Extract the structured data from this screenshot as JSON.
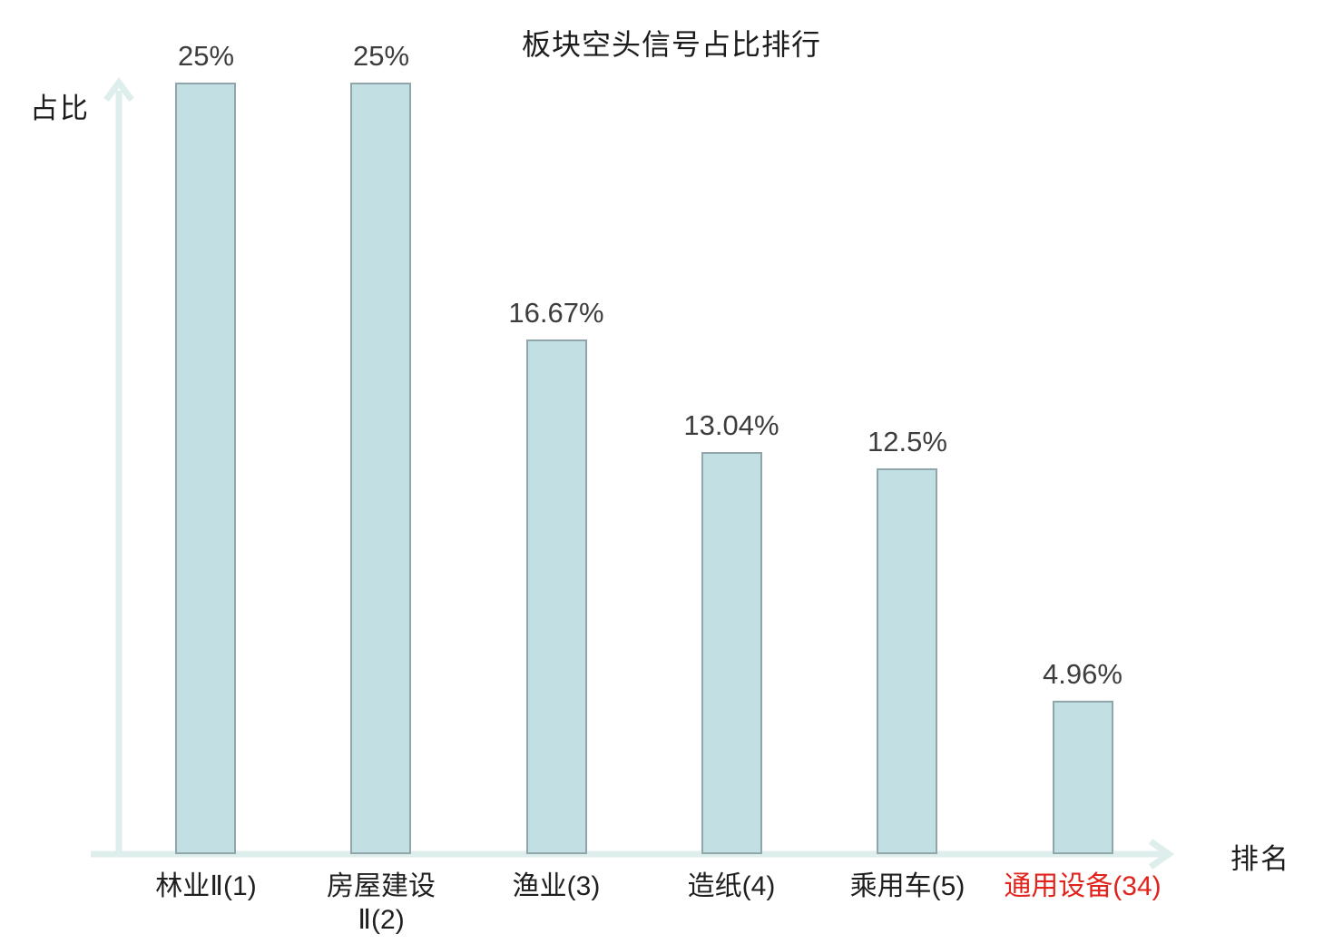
{
  "chart_data": {
    "type": "bar",
    "title": "板块空头信号占比排行",
    "xlabel": "排名",
    "ylabel": "占比",
    "categories": [
      "林业Ⅱ(1)",
      "房屋建设Ⅱ(2)",
      "渔业(3)",
      "造纸(4)",
      "乘用车(5)",
      "通用设备(34)"
    ],
    "tick_labels": [
      "林业Ⅱ(1)",
      "房屋建设\nⅡ(2)",
      "渔业(3)",
      "造纸(4)",
      "乘用车(5)",
      "通用设备(34)"
    ],
    "values": [
      25,
      25,
      16.67,
      13.04,
      12.5,
      4.96
    ],
    "value_labels": [
      "25%",
      "25%",
      "16.67%",
      "13.04%",
      "12.5%",
      "4.96%"
    ],
    "unit": "%",
    "highlight_index": 5,
    "ylim": [
      0,
      26.5
    ],
    "grid": false,
    "legend": "none",
    "colors": {
      "bar_fill": "#c2dfe3",
      "bar_border": "#90a6ab",
      "axis": "#deeeec",
      "value_label": "#3d3d3d",
      "tick_label": "#1f1f1f",
      "highlight": "#e0231c"
    }
  }
}
